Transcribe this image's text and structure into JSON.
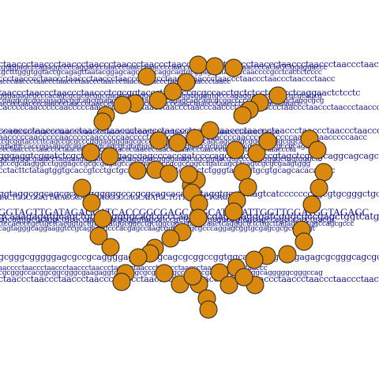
{
  "sequence_lines": [
    {
      "id": "l01",
      "text": "ctaaccctaaccctaaccctaaccctaaccctaaccctaaccctaaccctaaccctaaccctaaccctaaccctaaccctaaccctaaccctaacccta",
      "color": "#14148a"
    },
    {
      "id": "l02",
      "text": "tggggagcccagaggccccaggaccctaaccctaacccaaccccaaccaccaccccaaccccaaccccaGaGCggaggaccc",
      "color": "#14148a"
    },
    {
      "id": "l03",
      "text": "tgctttgggtggtaccgcagagttaatacggagcagcgtcacaggcagtgcggagtgttagtcccaaccccgcctcaccctcccc",
      "color": "#14148a"
    },
    {
      "id": "l04",
      "text": "ccctaacccctaaccctaaccctaaccctaaccctaaccctaaccctaaccctaaccctaaccctaaccctaaccctaacc",
      "color": "#14148a"
    },
    {
      "id": "l05",
      "text": "acccaaccctaaccctaaccctaaccctaaccctaaccctaaccctaaccctaaccctaacc",
      "color": "#14148a"
    },
    {
      "id": "l06",
      "text": "taaccctaaccctaaccctaaccctcgcggtacccttcagccgcgccacctgctctcctagacctcaggaactctcctc",
      "color": "#14148a"
    },
    {
      "id": "l07",
      "text": "gggagagcgcccacagcgcgcgcggcgagggaaagggcgcggcaggcggggtgcccagaggaggcagagcgcgcagcg",
      "color": "#14148a"
    },
    {
      "id": "l08",
      "text": "cgaggcgcggcggaggcggcagcggaggccaccggaagcgcagagcagcagcgcggcccccgggggcccgctaggcgcg",
      "color": "#14148a"
    },
    {
      "id": "l09",
      "text": "acccctaacccctaaccctaaccctaaccctaaccctaaccctaacccaacctaaccctaaccctaaccctaaccctaacc",
      "color": "#14148a"
    },
    {
      "id": "l10",
      "text": "cacccccaacccccaacccccaacccccaaccctaacctaaccctaacccaaccctaaccctGccctaaccctaaccctaaccctaacccta",
      "color": "#14148a"
    },
    {
      "id": "l11",
      "text": "ccaaccctaacccaacctaaccctaaccctaaccctaaccctaaccctaaccctaaccctaaccctaaccctaaccctaacccta",
      "color": "#14148a"
    },
    {
      "id": "l12",
      "text": "ccccttcacccaaccctaaccccaaccctaacccaacccctaaccctaaccctaaccctaaccctaaccctaacc",
      "color": "#14148a"
    },
    {
      "id": "l13",
      "text": "aacccccaacccccaacccccaacccccaacccctaacccccaacccccaaccccaacccccaaccccaaccccaacccccaacc",
      "color": "#14148a"
    },
    {
      "id": "l14",
      "text": "tcgcggtacccttcagccgcgcccgggaggggagcgcccgcggcgagagcgcagcagcgggcggcggaggcggcagcgg",
      "color": "#14148a"
    },
    {
      "id": "l15",
      "text": "ggaggccaccggaagcgcagagcagcagcgcgcggggcccgcgggggcccgcggggcggcgcagagcgccgcagagc",
      "color": "#14148a"
    },
    {
      "id": "l16",
      "text": "ccctaacccctaacccctaaccctaacccctaaccctaaccctaaccctaaccctaaccctaaccctaaccctaacccta",
      "color": "#14148a"
    },
    {
      "id": "l17",
      "text": "gggaggtcggatctcgcttggtcaggagcgagcccaccgatccccagcccaccgcccgtagctcgtcgcaggcagcagccccc",
      "color": "#14148a"
    },
    {
      "id": "l18",
      "text": "ggcggggcgagtcctaggaagaggacccgagtagcgggcggggaatgcagcggaacgtgcccgggggggctggtgggctc",
      "color": "#14148a"
    },
    {
      "id": "l19",
      "text": "gcccgcaagggcctgggagccgcgcgagagccagagaccaccgcgccggcctgatcagcctcagtcgcgcgaagtggg",
      "color": "#14148a"
    },
    {
      "id": "l20",
      "text": "cctacttctatagtggtgcaccgtcctgctgcagctaggacattcaggctctgggtacaggtgcgtgcagcacacacacc",
      "color": "#14148a"
    },
    {
      "id": "l21",
      "text": "ggtaggcggcagcgcgccggggggcccgcgcagcacagactaggtgcctcttagtcatcccccccagcgtgcgggctgcgcc",
      "color": "#14148a"
    },
    {
      "id": "l22",
      "text": "TACTGGCGGATTATAGGGAAACACCCGGAGCATATGCTGTTTGGTCTCAGT",
      "color": "#14148a",
      "big": true
    },
    {
      "id": "l23",
      "text": "GGTAGTTGATAGAGCATCACCGGCGAGCATGCATGGATTGGTTGGATGGTAGAGC",
      "color": "#14148a",
      "big": true
    },
    {
      "id": "l24",
      "text": "gcaaagaggtgcagctggcccggggcagcgcccaagggcgagggagggatcgggcgccgagctggtcatggggcagagg",
      "color": "#14148a"
    },
    {
      "id": "l25",
      "text": "cgcagggcgctggctgcaccgctcggcgcgggtagcctccgctgagtcgcgacagtagcagccagcccacctgacgc",
      "color": "#14148a"
    },
    {
      "id": "l26",
      "text": "ttccaccccgcttgctcacggtgctgtgccatggcggcctgctggcggactaggcaactcagggctctcttgcttagagtggtggccagcgccc",
      "color": "#14148a"
    },
    {
      "id": "l27",
      "text": "cagtagggcaggaaggtccgcagccggcccacgagccaagcgggcgggcgcccaggagcggtgcgagcgcgccgacgt",
      "color": "#14148a"
    },
    {
      "id": "l28",
      "text": "gcgggcgggggagcgccgcaggggagaggctgcagcgcggccggtggcaggcgcgcgggagagcgcgggcagcgcgagcg",
      "color": "#14148a"
    },
    {
      "id": "l29",
      "text": "aacccctaaccctaaccctaaccctaaccctaaccctaaccctaaccctaaccctaaccctaaccctaaccc",
      "color": "#14148a"
    },
    {
      "id": "l30",
      "text": "cgcgggccacggcggcgggcgaagaggtgagcagcgcggcgggccacggcgagagcgcggcggcagggggcgggccag",
      "color": "#14148a"
    },
    {
      "id": "l31",
      "text": "ctaaccctaaccctaaccctaaccctaaccctaaccctaaccctaaccctaaccctaaccctaaccctaaccctaaccctaaccctaacccta",
      "color": "#14148a"
    }
  ],
  "marker_color": "#d98a0e",
  "marker_stroke": "#222222",
  "markers": [
    {
      "shape": "circle"
    }
  ]
}
